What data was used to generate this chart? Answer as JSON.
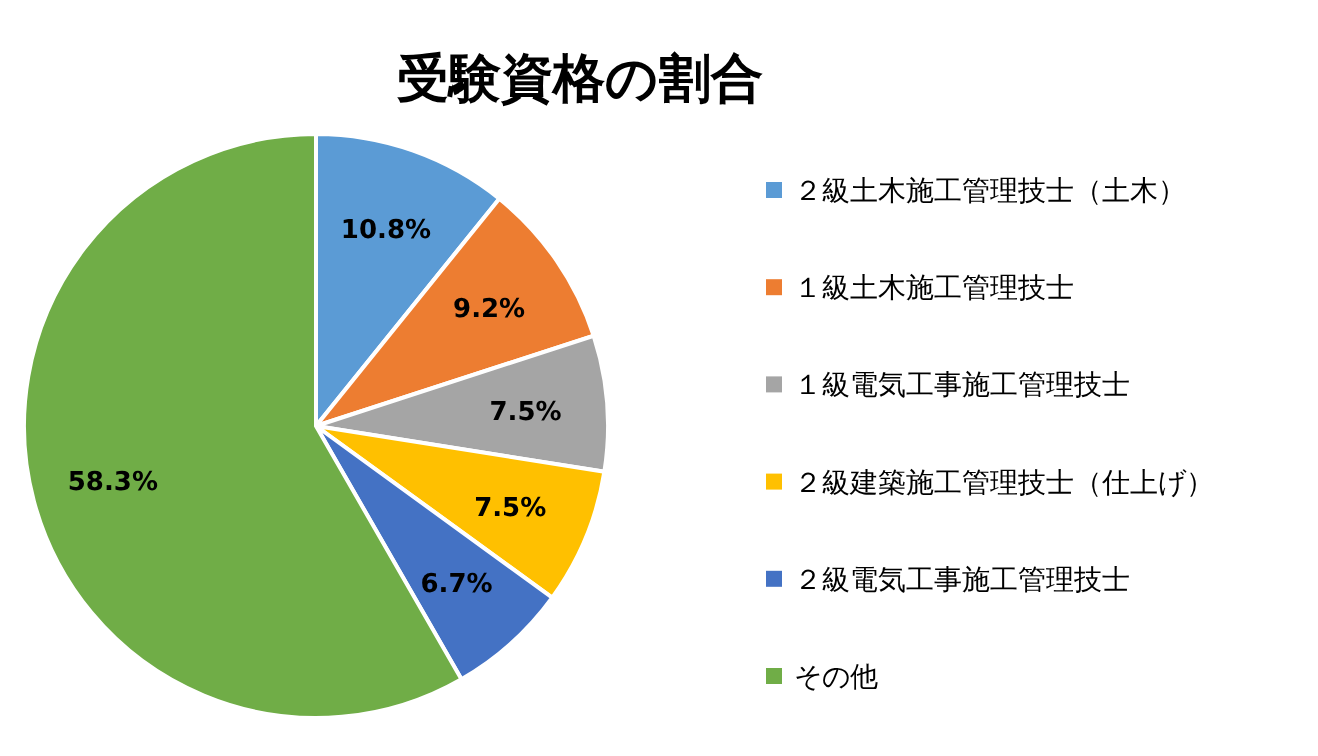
{
  "chart_data": {
    "type": "pie",
    "title": "受験資格の割合",
    "categories": [
      "２級土木施工管理技士（土木）",
      "１級土木施工管理技士",
      "１級電気工事施工管理技士",
      "２級建築施工管理技士（仕上げ）",
      "２級電気工事施工管理技士",
      "その他"
    ],
    "values": [
      10.8,
      9.2,
      7.5,
      7.5,
      6.7,
      58.3
    ],
    "colors": [
      "#5b9bd5",
      "#ed7d31",
      "#a5a5a5",
      "#ffc000",
      "#4472c4",
      "#70ad47"
    ],
    "value_labels": [
      "10.8%",
      "9.2%",
      "7.5%",
      "7.5%",
      "6.7%",
      "58.3%"
    ],
    "legend": "right"
  }
}
